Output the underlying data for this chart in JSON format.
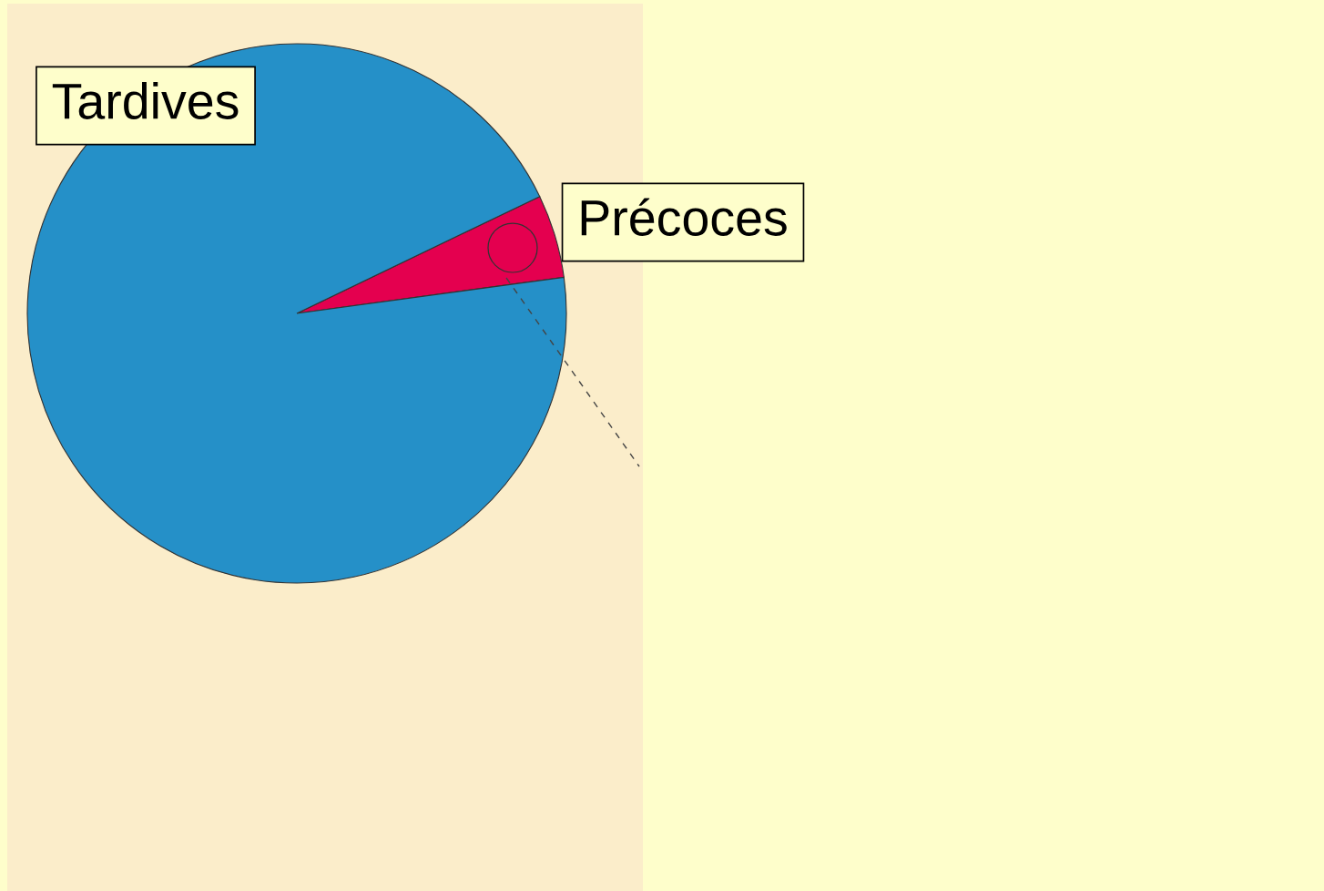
{
  "chart_data": {
    "type": "pie",
    "categories": [
      "Précoces",
      "Tardives"
    ],
    "values": [
      5,
      95
    ],
    "colors": [
      "#e4004f",
      "#2590c8"
    ]
  }
}
